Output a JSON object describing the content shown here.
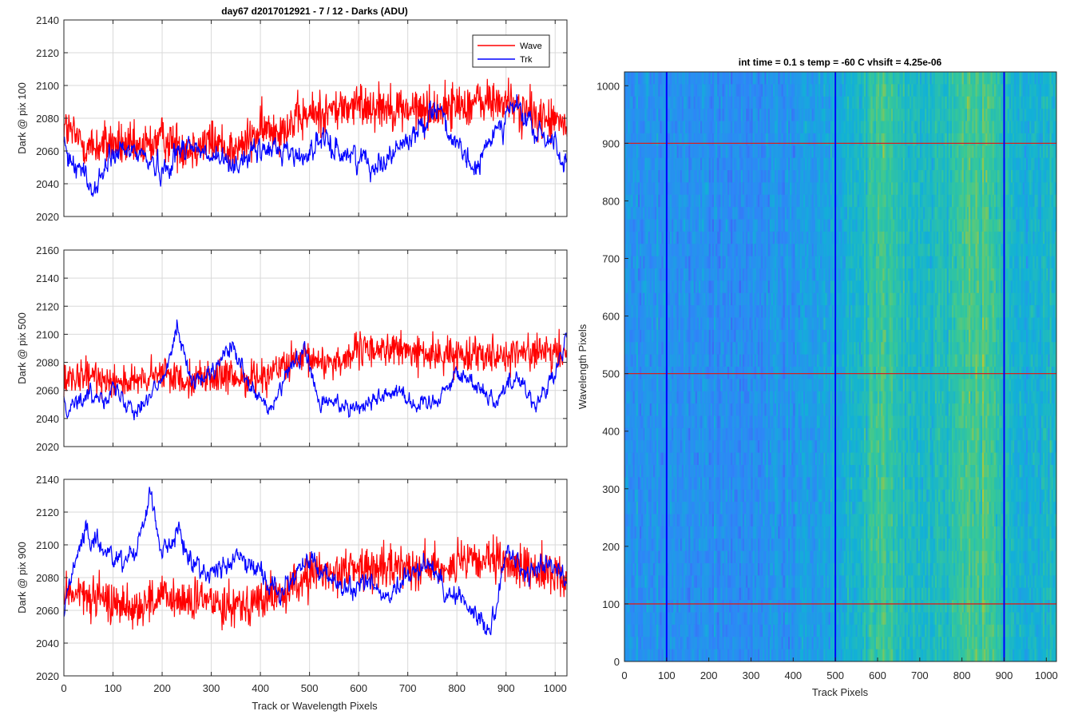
{
  "chart_data": [
    {
      "type": "line",
      "title": "day67 d2017012921 - 7 / 12 - Darks (ADU)",
      "xlabel": "",
      "ylabel": "Dark @ pix 100",
      "xlim": [
        0,
        1024
      ],
      "ylim": [
        2020,
        2140
      ],
      "xticks": [
        0,
        100,
        200,
        300,
        400,
        500,
        600,
        700,
        800,
        900,
        1000
      ],
      "yticks": [
        2020,
        2040,
        2060,
        2080,
        2100,
        2120,
        2140
      ],
      "show_xtick_labels": false,
      "grid": true,
      "legend": {
        "position": "top-right",
        "entries": [
          "Wave",
          "Trk"
        ]
      },
      "series": [
        {
          "name": "Wave",
          "color": "#ff0000",
          "x": [
            0,
            50,
            100,
            150,
            200,
            250,
            300,
            350,
            400,
            450,
            500,
            550,
            600,
            650,
            700,
            750,
            800,
            850,
            900,
            950,
            1000,
            1024
          ],
          "y": [
            2075,
            2062,
            2065,
            2060,
            2068,
            2062,
            2066,
            2060,
            2072,
            2075,
            2082,
            2085,
            2088,
            2088,
            2085,
            2085,
            2088,
            2090,
            2090,
            2082,
            2078,
            2076
          ],
          "amp": 18
        },
        {
          "name": "Trk",
          "color": "#0000ff",
          "x": [
            0,
            30,
            60,
            100,
            150,
            200,
            250,
            300,
            350,
            400,
            450,
            480,
            520,
            560,
            600,
            640,
            680,
            720,
            760,
            800,
            840,
            880,
            920,
            960,
            1000,
            1024
          ],
          "y": [
            2058,
            2052,
            2035,
            2058,
            2060,
            2048,
            2065,
            2055,
            2053,
            2060,
            2062,
            2055,
            2066,
            2060,
            2056,
            2052,
            2062,
            2072,
            2090,
            2060,
            2048,
            2075,
            2088,
            2070,
            2066,
            2048
          ],
          "amp": 9
        }
      ]
    },
    {
      "type": "line",
      "title": "",
      "xlabel": "",
      "ylabel": "Dark @ pix 500",
      "xlim": [
        0,
        1024
      ],
      "ylim": [
        2020,
        2160
      ],
      "xticks": [
        0,
        100,
        200,
        300,
        400,
        500,
        600,
        700,
        800,
        900,
        1000
      ],
      "yticks": [
        2020,
        2040,
        2060,
        2080,
        2100,
        2120,
        2140,
        2160
      ],
      "show_xtick_labels": false,
      "grid": true,
      "series": [
        {
          "name": "Wave",
          "color": "#ff0000",
          "x": [
            0,
            50,
            100,
            150,
            200,
            250,
            300,
            350,
            400,
            450,
            500,
            550,
            600,
            650,
            700,
            750,
            800,
            850,
            900,
            950,
            1000,
            1024
          ],
          "y": [
            2065,
            2070,
            2068,
            2065,
            2072,
            2068,
            2070,
            2068,
            2070,
            2078,
            2082,
            2080,
            2088,
            2090,
            2088,
            2085,
            2085,
            2088,
            2085,
            2088,
            2085,
            2088
          ],
          "amp": 16
        },
        {
          "name": "Trk",
          "color": "#0000ff",
          "x": [
            0,
            50,
            100,
            150,
            200,
            230,
            260,
            300,
            340,
            380,
            420,
            460,
            490,
            520,
            560,
            600,
            640,
            680,
            720,
            760,
            800,
            840,
            880,
            920,
            960,
            1000,
            1024
          ],
          "y": [
            2050,
            2055,
            2060,
            2048,
            2065,
            2108,
            2065,
            2070,
            2092,
            2060,
            2045,
            2075,
            2090,
            2050,
            2052,
            2048,
            2055,
            2062,
            2048,
            2055,
            2072,
            2065,
            2052,
            2072,
            2050,
            2070,
            2098
          ],
          "amp": 8
        }
      ]
    },
    {
      "type": "line",
      "title": "",
      "xlabel": "Track or Wavelength Pixels",
      "ylabel": "Dark @ pix 900",
      "xlim": [
        0,
        1024
      ],
      "ylim": [
        2020,
        2140
      ],
      "xticks": [
        0,
        100,
        200,
        300,
        400,
        500,
        600,
        700,
        800,
        900,
        1000
      ],
      "yticks": [
        2020,
        2040,
        2060,
        2080,
        2100,
        2120,
        2140
      ],
      "show_xtick_labels": true,
      "grid": true,
      "series": [
        {
          "name": "Wave",
          "color": "#ff0000",
          "x": [
            0,
            50,
            100,
            150,
            200,
            250,
            300,
            350,
            400,
            450,
            500,
            550,
            600,
            650,
            700,
            750,
            800,
            850,
            900,
            950,
            1000,
            1024
          ],
          "y": [
            2072,
            2068,
            2065,
            2062,
            2068,
            2065,
            2066,
            2064,
            2066,
            2070,
            2082,
            2084,
            2086,
            2085,
            2088,
            2086,
            2088,
            2090,
            2088,
            2086,
            2082,
            2078
          ],
          "amp": 17
        },
        {
          "name": "Trk",
          "color": "#0000ff",
          "x": [
            0,
            20,
            40,
            80,
            120,
            150,
            175,
            200,
            230,
            260,
            300,
            350,
            400,
            440,
            460,
            500,
            540,
            580,
            620,
            660,
            700,
            740,
            780,
            820,
            860,
            880,
            900,
            940,
            980,
            1024
          ],
          "y": [
            2060,
            2090,
            2105,
            2098,
            2090,
            2100,
            2132,
            2095,
            2108,
            2090,
            2082,
            2092,
            2085,
            2068,
            2080,
            2090,
            2080,
            2070,
            2080,
            2065,
            2080,
            2090,
            2072,
            2065,
            2048,
            2062,
            2098,
            2080,
            2090,
            2080
          ],
          "amp": 8
        }
      ]
    },
    {
      "type": "heatmap",
      "title": "int time = 0.1 s   temp = -60 C   vhsift = 4.25e-06",
      "xlabel": "Track Pixels",
      "ylabel": "Wavelength Pixels",
      "xlim": [
        0,
        1024
      ],
      "ylim": [
        0,
        1024
      ],
      "xticks": [
        0,
        100,
        200,
        300,
        400,
        500,
        600,
        700,
        800,
        900,
        1000
      ],
      "yticks": [
        0,
        100,
        200,
        300,
        400,
        500,
        600,
        700,
        800,
        900,
        1000
      ],
      "colormap": "parula",
      "column_profile": {
        "x": [
          0,
          100,
          200,
          300,
          400,
          500,
          550,
          600,
          650,
          700,
          750,
          800,
          850,
          900,
          950,
          1000,
          1024
        ],
        "level": [
          0.33,
          0.32,
          0.31,
          0.32,
          0.34,
          0.4,
          0.47,
          0.55,
          0.52,
          0.47,
          0.5,
          0.55,
          0.6,
          0.5,
          0.42,
          0.45,
          0.47
        ]
      },
      "marker_lines": {
        "vertical": {
          "color": "#0000ff",
          "x": [
            100,
            500,
            900
          ]
        },
        "horizontal": {
          "color": "#d62020",
          "y": [
            100,
            500,
            900
          ]
        }
      }
    }
  ]
}
